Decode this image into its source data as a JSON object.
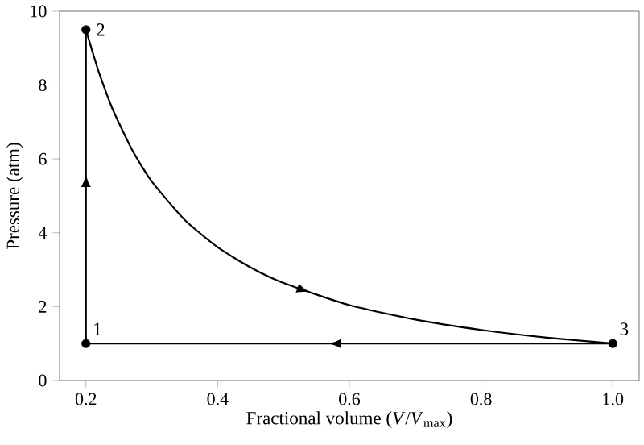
{
  "chart_data": {
    "type": "line",
    "xlabel": "Fractional volume (*V*/*V*$_{max}$)",
    "ylabel": "Pressure (atm)",
    "xlim": [
      0.16,
      1.04
    ],
    "ylim": [
      0,
      10
    ],
    "xticks": [
      0.2,
      0.4,
      0.6,
      0.8,
      {
        "value": 1,
        "label": "1.0"
      }
    ],
    "yticks": [
      0,
      2,
      4,
      6,
      8,
      10
    ],
    "series": [
      {
        "color": "#000000",
        "x": [
          0.2,
          0.2
        ],
        "values": [
          1,
          9.5
        ]
      },
      {
        "color": "#000000",
        "x": [
          0.2,
          0.21,
          0.22,
          0.24,
          0.27,
          0.3,
          0.35,
          0.4,
          0.45,
          0.5,
          0.6,
          0.7,
          0.8,
          0.9,
          1.0
        ],
        "values": [
          9.5,
          8.9,
          8.33,
          7.37,
          6.25,
          5.39,
          4.35,
          3.61,
          3.06,
          2.64,
          2.04,
          1.65,
          1.37,
          1.16,
          1.0
        ]
      },
      {
        "color": "#000000",
        "x": [
          1.0,
          0.2
        ],
        "values": [
          1,
          1
        ]
      },
      {
        "type": "scatter",
        "color": "#000000",
        "marker": "circle",
        "x": [
          0.2,
          0.2,
          1.0
        ],
        "values": [
          1,
          9.5,
          1
        ]
      }
    ],
    "annotations": [
      "1",
      "2",
      "3"
    ]
  }
}
